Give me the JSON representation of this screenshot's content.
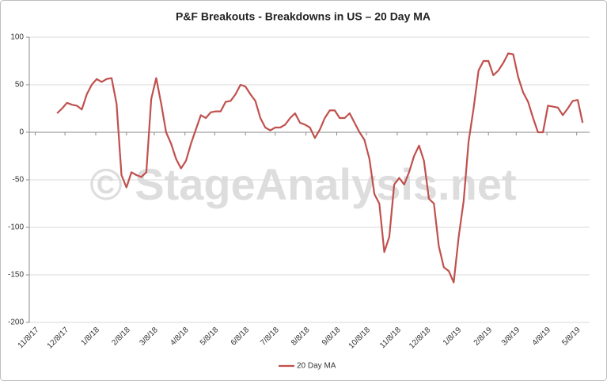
{
  "chart_data": {
    "type": "line",
    "title": "P&F Breakouts - Breakdowns in US – 20 Day MA",
    "watermark": "© StageAnalysis.net",
    "x": [
      "11/30/17",
      "12/5/17",
      "12/10/17",
      "12/15/17",
      "12/20/17",
      "12/25/17",
      "12/30/17",
      "1/4/18",
      "1/9/18",
      "1/14/18",
      "1/19/18",
      "1/24/18",
      "1/29/18",
      "2/3/18",
      "2/8/18",
      "2/13/18",
      "2/18/18",
      "2/23/18",
      "2/28/18",
      "3/5/18",
      "3/10/18",
      "3/15/18",
      "3/20/18",
      "3/25/18",
      "3/30/18",
      "4/4/18",
      "4/9/18",
      "4/14/18",
      "4/19/18",
      "4/24/18",
      "4/29/18",
      "5/4/18",
      "5/9/18",
      "5/14/18",
      "5/19/18",
      "5/24/18",
      "5/29/18",
      "6/3/18",
      "6/8/18",
      "6/13/18",
      "6/18/18",
      "6/23/18",
      "6/28/18",
      "7/3/18",
      "7/8/18",
      "7/13/18",
      "7/18/18",
      "7/23/18",
      "7/28/18",
      "8/2/18",
      "8/7/18",
      "8/12/18",
      "8/17/18",
      "8/22/18",
      "8/27/18",
      "9/1/18",
      "9/6/18",
      "9/11/18",
      "9/16/18",
      "9/21/18",
      "9/26/18",
      "10/1/18",
      "10/6/18",
      "10/11/18",
      "10/16/18",
      "10/21/18",
      "10/26/18",
      "10/31/18",
      "11/5/18",
      "11/10/18",
      "11/15/18",
      "11/20/18",
      "11/25/18",
      "11/30/18",
      "12/5/18",
      "12/10/18",
      "12/15/18",
      "12/20/18",
      "12/25/18",
      "12/30/18",
      "1/4/19",
      "1/9/19",
      "1/14/19",
      "1/19/19",
      "1/24/19",
      "1/29/19",
      "2/3/19",
      "2/8/19",
      "2/13/19",
      "2/18/19",
      "2/23/19",
      "2/28/19",
      "3/5/19",
      "3/10/19",
      "3/15/19",
      "3/20/19",
      "3/25/19",
      "3/30/19",
      "4/4/19",
      "4/9/19",
      "4/14/19",
      "4/19/19",
      "4/24/19",
      "4/29/19",
      "5/4/19",
      "5/9/19",
      "5/14/19"
    ],
    "series": [
      {
        "name": "20 Day MA",
        "color": "#c0504d",
        "values": [
          20,
          25,
          31,
          29,
          28,
          24,
          40,
          50,
          56,
          53,
          56,
          57,
          30,
          -45,
          -58,
          -42,
          -45,
          -47,
          -42,
          35,
          57,
          30,
          0,
          -12,
          -28,
          -38,
          -30,
          -12,
          3,
          18,
          15,
          21,
          22,
          22,
          32,
          33,
          40,
          50,
          48,
          40,
          33,
          15,
          5,
          2,
          5,
          5,
          8,
          15,
          20,
          10,
          8,
          5,
          -6,
          3,
          15,
          23,
          23,
          15,
          15,
          20,
          10,
          0,
          -8,
          -28,
          -65,
          -75,
          -126,
          -110,
          -55,
          -48,
          -55,
          -42,
          -25,
          -14,
          -30,
          -70,
          -75,
          -120,
          -142,
          -146,
          -158,
          -110,
          -72,
          -10,
          25,
          65,
          75,
          75,
          60,
          65,
          73,
          83,
          82,
          58,
          42,
          32,
          15,
          0,
          0,
          28,
          27,
          26,
          18,
          25,
          33,
          34,
          10
        ]
      }
    ],
    "xlim": [
      "11/2/17",
      "5/21/19"
    ],
    "xticks": [
      "11/8/17",
      "12/8/17",
      "1/8/18",
      "2/8/18",
      "3/8/18",
      "4/8/18",
      "5/8/18",
      "6/8/18",
      "7/8/18",
      "8/8/18",
      "9/8/18",
      "10/8/18",
      "11/8/18",
      "12/8/18",
      "1/8/19",
      "2/8/19",
      "3/8/19",
      "4/8/19",
      "5/8/19"
    ],
    "ylim": [
      -200,
      100
    ],
    "yticks": [
      -200,
      -150,
      -100,
      -50,
      0,
      50,
      100
    ],
    "grid": true,
    "legend": "bottom"
  }
}
